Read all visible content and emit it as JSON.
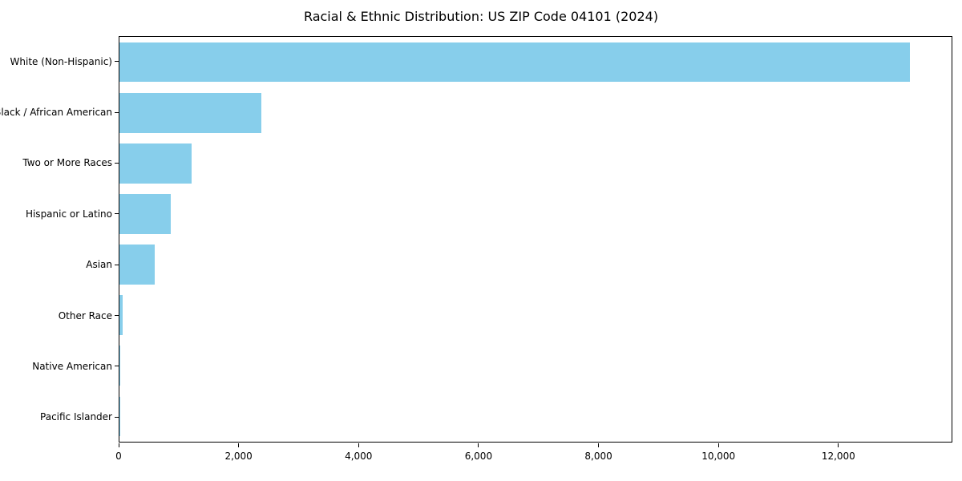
{
  "chart_data": {
    "type": "bar",
    "orientation": "horizontal",
    "title": "Racial & Ethnic Distribution: US ZIP Code 04101 (2024)",
    "categories": [
      "White (Non-Hispanic)",
      "Black / African American",
      "Two or More Races",
      "Hispanic or Latino",
      "Asian",
      "Other Race",
      "Native American",
      "Pacific Islander"
    ],
    "values": [
      13200,
      2370,
      1210,
      860,
      590,
      60,
      15,
      5
    ],
    "xlabel": "",
    "ylabel": "",
    "xlim": [
      0,
      13900
    ],
    "xticks": [
      0,
      2000,
      4000,
      6000,
      8000,
      10000,
      12000
    ],
    "xtick_labels": [
      "0",
      "2,000",
      "4,000",
      "6,000",
      "8,000",
      "10,000",
      "12,000"
    ],
    "bar_color": "#87CEEB",
    "grid": "off",
    "legend": "none"
  }
}
